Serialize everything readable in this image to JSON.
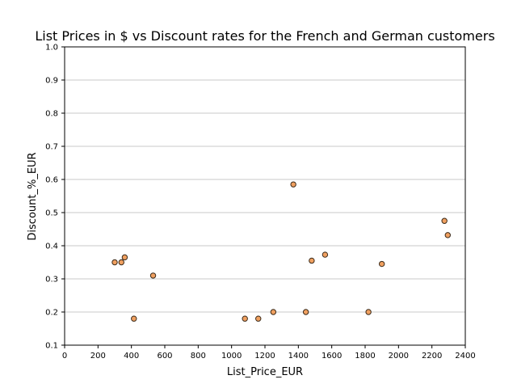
{
  "chart_data": {
    "type": "scatter",
    "title": "List Prices in $ vs Discount rates for the French and German customers",
    "xlabel": "List_Price_EUR",
    "ylabel": "Discount_%_EUR",
    "xlim": [
      0,
      2400
    ],
    "ylim": [
      0.1,
      1.0
    ],
    "x_ticks": [
      0,
      200,
      400,
      600,
      800,
      1000,
      1200,
      1400,
      1600,
      1800,
      2000,
      2200,
      2400
    ],
    "y_ticks": [
      0.1,
      0.2,
      0.3,
      0.4,
      0.5,
      0.6,
      0.7,
      0.8,
      0.9,
      1.0
    ],
    "x_tick_labels": [
      "0",
      "200",
      "400",
      "600",
      "800",
      "1000",
      "1200",
      "1400",
      "1600",
      "1800",
      "2000",
      "2200",
      "2400"
    ],
    "y_tick_labels": [
      "0.1",
      "0.2",
      "0.3",
      "0.4",
      "0.5",
      "0.6",
      "0.7",
      "0.8",
      "0.9",
      "1.0"
    ],
    "grid": "horizontal",
    "legend": "none",
    "marker_fill": "#f0a060",
    "marker_edge": "#3a2a1a",
    "series": [
      {
        "points": [
          {
            "x": 300,
            "y": 0.35
          },
          {
            "x": 340,
            "y": 0.35
          },
          {
            "x": 360,
            "y": 0.365
          },
          {
            "x": 415,
            "y": 0.18
          },
          {
            "x": 530,
            "y": 0.31
          },
          {
            "x": 1080,
            "y": 0.18
          },
          {
            "x": 1160,
            "y": 0.18
          },
          {
            "x": 1250,
            "y": 0.2
          },
          {
            "x": 1370,
            "y": 0.585
          },
          {
            "x": 1445,
            "y": 0.2
          },
          {
            "x": 1480,
            "y": 0.355
          },
          {
            "x": 1560,
            "y": 0.373
          },
          {
            "x": 1820,
            "y": 0.2
          },
          {
            "x": 1900,
            "y": 0.345
          },
          {
            "x": 2275,
            "y": 0.475
          },
          {
            "x": 2295,
            "y": 0.432
          }
        ]
      }
    ]
  }
}
